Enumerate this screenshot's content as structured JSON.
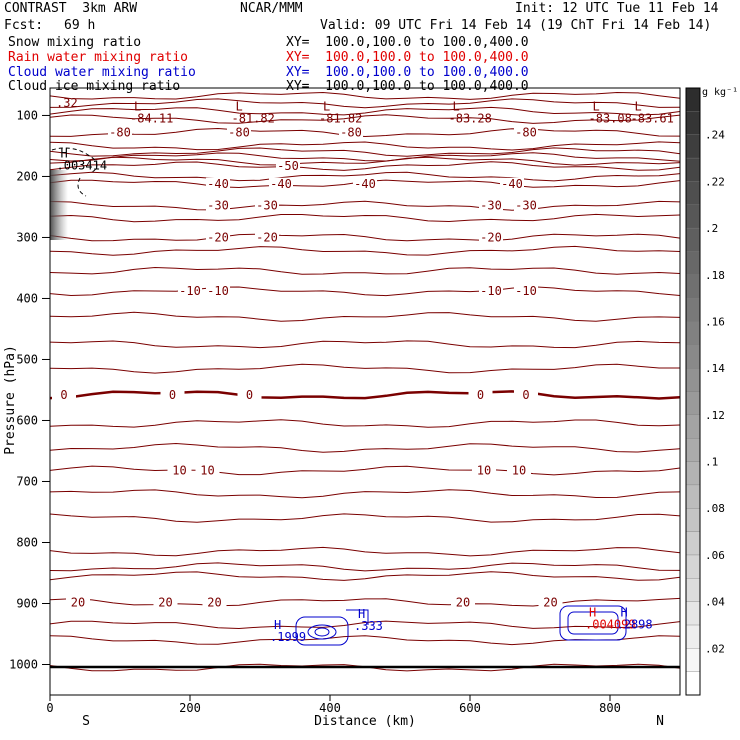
{
  "header": {
    "model": "CONTRAST  3km ARW",
    "org": "NCAR/MMM",
    "init": "Init: 12 UTC Tue 11 Feb 14",
    "fcst_label": "Fcst:",
    "fcst_value": "69 h",
    "valid": "Valid: 09 UTC Fri 14 Feb 14 (19 ChT Fri 14 Feb 14)"
  },
  "fields": [
    {
      "name": "Snow mixing ratio",
      "xy": "XY=  100.0,100.0 to 100.0,400.0",
      "color": "#000000"
    },
    {
      "name": "Rain water mixing ratio",
      "xy": "XY=  100.0,100.0 to 100.0,400.0",
      "color": "#e00000"
    },
    {
      "name": "Cloud water mixing ratio",
      "xy": "XY=  100.0,100.0 to 100.0,400.0",
      "color": "#0000cc"
    },
    {
      "name": "Cloud ice mixing ratio",
      "xy": "XY=  100.0,100.0 to 100.0,400.0",
      "color": "#000000"
    }
  ],
  "chart_data": {
    "type": "cross-section contour",
    "xlabel": "Distance (km)",
    "ylabel": "Pressure (hPa)",
    "xlim": [
      0,
      900
    ],
    "ylim": [
      1050,
      55
    ],
    "x_ticks": [
      0,
      200,
      400,
      600,
      800
    ],
    "y_ticks": [
      100,
      200,
      300,
      400,
      500,
      600,
      700,
      800,
      900,
      1000
    ],
    "x_end_labels": [
      "S",
      "N"
    ],
    "colorbar": {
      "unit": "g kg⁻¹",
      "range": [
        0,
        0.26
      ],
      "tick_labels": [
        ".24",
        ".22",
        ".2",
        ".18",
        ".16",
        ".14",
        ".12",
        ".1",
        ".08",
        ".06",
        ".04",
        ".02"
      ]
    },
    "isotherms": [
      {
        "label": "-80",
        "p": 128,
        "labels_at": [
          100,
          270,
          430,
          680
        ]
      },
      {
        "label": "-50",
        "p": 183,
        "labels_at": [
          340
        ]
      },
      {
        "label": "-40",
        "p": 212,
        "labels_at": [
          240,
          330,
          450,
          660
        ]
      },
      {
        "label": "-30",
        "p": 248,
        "labels_at": [
          240,
          310,
          630,
          680
        ]
      },
      {
        "label": "-20",
        "p": 300,
        "labels_at": [
          240,
          310,
          630
        ]
      },
      {
        "label": "-10",
        "p": 388,
        "labels_at": [
          200,
          240,
          630,
          680
        ]
      },
      {
        "label": "0",
        "p": 558,
        "labels_at": [
          20,
          175,
          285,
          615,
          680
        ]
      },
      {
        "label": "10",
        "p": 682,
        "labels_at": [
          185,
          225,
          620,
          670
        ]
      },
      {
        "label": "20",
        "p": 898,
        "labels_at": [
          40,
          165,
          235,
          590,
          715
        ]
      }
    ],
    "background_lines_p": [
      68,
      80,
      93,
      106,
      150,
      160,
      168,
      175,
      200,
      268,
      322,
      355,
      430,
      475,
      515,
      605,
      645,
      720,
      760,
      815,
      840,
      855,
      935,
      960,
      1005
    ],
    "extrema": [
      {
        "kind": "L",
        "value": "-84.11",
        "x": 120,
        "p": 108
      },
      {
        "kind": "L",
        "value": "-81.82",
        "x": 265,
        "p": 108
      },
      {
        "kind": "L",
        "value": "-81.82",
        "x": 390,
        "p": 108
      },
      {
        "kind": "L",
        "value": "-83.28",
        "x": 575,
        "p": 108
      },
      {
        "kind": "L",
        "value": "-83.08",
        "x": 775,
        "p": 108
      },
      {
        "kind": "L",
        "value": "-83.61",
        "x": 835,
        "p": 108
      },
      {
        "kind": "H",
        "value": ".003414",
        "x": 15,
        "p": 185
      },
      {
        "kind": "H",
        "value": ".1999",
        "x": 320,
        "p": 958
      },
      {
        "kind": "H",
        "value": ".333",
        "x": 440,
        "p": 940
      },
      {
        "kind": "H",
        "value": ".004099",
        "x": 770,
        "p": 938
      },
      {
        "kind": "H",
        "value": ".2898",
        "x": 815,
        "p": 938
      }
    ],
    "partial_label": ".32"
  }
}
